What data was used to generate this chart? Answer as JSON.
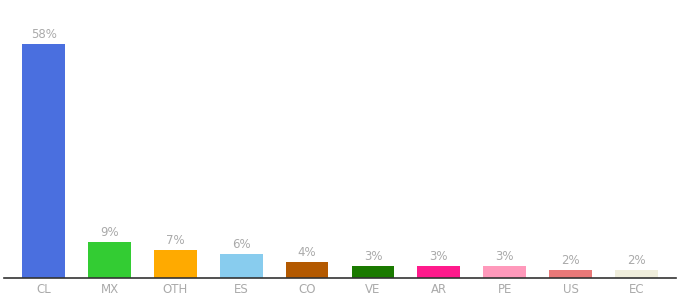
{
  "categories": [
    "CL",
    "MX",
    "OTH",
    "ES",
    "CO",
    "VE",
    "AR",
    "PE",
    "US",
    "EC"
  ],
  "values": [
    58,
    9,
    7,
    6,
    4,
    3,
    3,
    3,
    2,
    2
  ],
  "bar_colors": [
    "#4a6fdf",
    "#33cc33",
    "#ffaa00",
    "#88ccee",
    "#b35900",
    "#1a7a00",
    "#ff1a8c",
    "#ff99bb",
    "#e87878",
    "#f0eedc"
  ],
  "label_color": "#aaaaaa",
  "axis_line_color": "#333333",
  "background_color": "#ffffff",
  "ylim": [
    0,
    68
  ],
  "label_fontsize": 8.5,
  "tick_fontsize": 8.5,
  "bar_width": 0.65,
  "figsize": [
    6.8,
    3.0
  ],
  "dpi": 100
}
